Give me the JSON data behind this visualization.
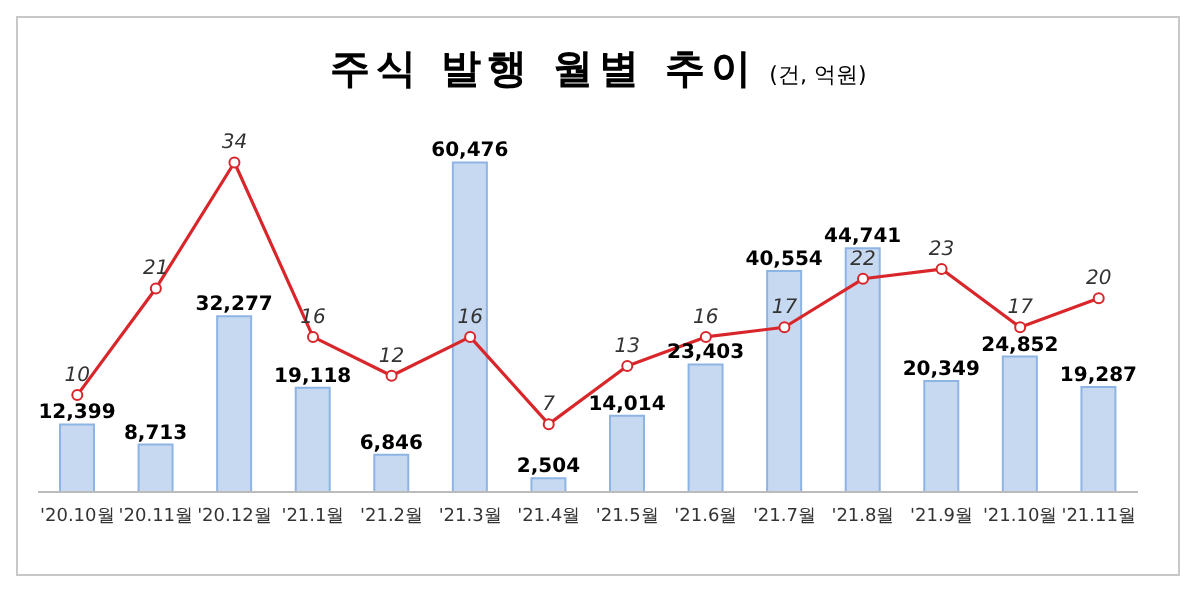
{
  "chart_data": {
    "type": "bar",
    "title": "주식 발행 월별 추이",
    "subtitle": "(건, 억원)",
    "categories": [
      "'20.10월",
      "'20.11월",
      "'20.12월",
      "'21.1월",
      "'21.2월",
      "'21.3월",
      "'21.4월",
      "'21.5월",
      "'21.6월",
      "'21.7월",
      "'21.8월",
      "'21.9월",
      "'21.10월",
      "'21.11월"
    ],
    "series": [
      {
        "color": "#c6d9f1",
        "values": [
          12399,
          8713,
          32277,
          19118,
          6846,
          60476,
          2504,
          14014,
          23403,
          40554,
          44741,
          20349,
          24852,
          19287
        ],
        "value_labels": [
          "12,399",
          "8,713",
          "32,277",
          "19,118",
          "6,846",
          "60,476",
          "2,504",
          "14,014",
          "23,403",
          "40,554",
          "44,741",
          "20,349",
          "24,852",
          "19,287"
        ]
      },
      {
        "type": "line",
        "axis": "y2",
        "color": "#d9262b",
        "values": [
          10,
          21,
          34,
          16,
          12,
          16,
          7,
          13,
          16,
          17,
          22,
          23,
          17,
          20
        ],
        "value_labels": [
          "10",
          "21",
          "34",
          "16",
          "12",
          "16",
          "7",
          "13",
          "16",
          "17",
          "22",
          "23",
          "17",
          "20"
        ]
      }
    ],
    "tick_labels": "x",
    "marker": "circle",
    "line_style": "solid"
  }
}
